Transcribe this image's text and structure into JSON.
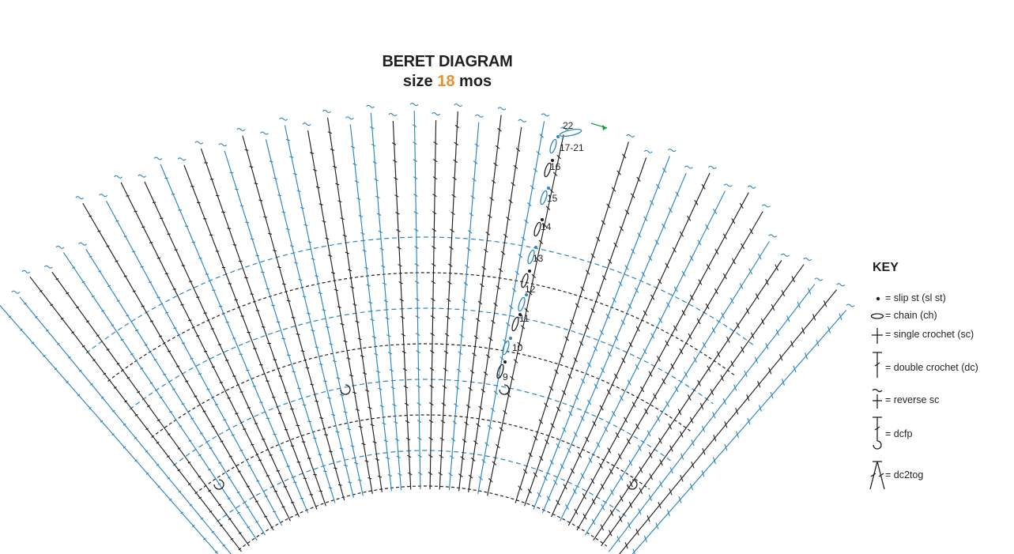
{
  "title": {
    "line1": "BERET DIAGRAM",
    "size_word": "size",
    "size_value": "18",
    "size_unit": "mos"
  },
  "colors": {
    "black": "#231f20",
    "blue": "#2b86c0",
    "accent": "#e8902a",
    "arrow": "#1d9a48"
  },
  "row_numbers": [
    "9",
    "10",
    "11",
    "12",
    "13",
    "14",
    "15",
    "16",
    "17-21",
    "22"
  ],
  "key": {
    "title": "KEY",
    "items": [
      {
        "symbol": "dot-icon",
        "label": "= slip st (sl st)"
      },
      {
        "symbol": "oval-icon",
        "label": "= chain (ch)"
      },
      {
        "symbol": "cross-icon",
        "label": "= single crochet (sc)"
      },
      {
        "symbol": "tall-t-icon",
        "label": "= double crochet (dc)"
      },
      {
        "symbol": "tilde-cross-icon",
        "label": "= reverse sc"
      },
      {
        "symbol": "post-hook-icon",
        "label": "= dcfp"
      },
      {
        "symbol": "peak-icon",
        "label": "= dc2tog"
      }
    ]
  }
}
